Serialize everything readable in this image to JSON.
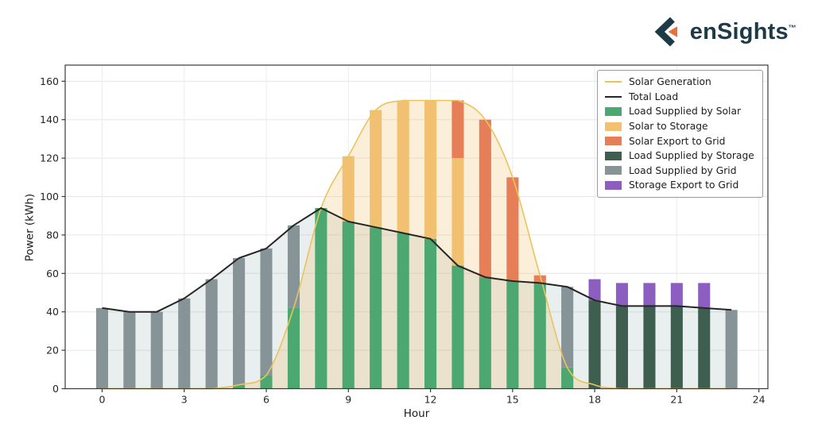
{
  "logo": {
    "brand": "enSights",
    "tm": "™",
    "navy": "#1d3a45",
    "orange": "#e8703a"
  },
  "chart_data": {
    "type": "bar",
    "stacked": true,
    "xlabel": "Hour",
    "ylabel": "Power (kWh)",
    "hours": [
      0,
      1,
      2,
      3,
      4,
      5,
      6,
      7,
      8,
      9,
      10,
      11,
      12,
      13,
      14,
      15,
      16,
      17,
      18,
      19,
      20,
      21,
      22,
      23
    ],
    "xticks": [
      0,
      3,
      6,
      9,
      12,
      15,
      18,
      21,
      24
    ],
    "yticks": [
      0,
      20,
      40,
      60,
      80,
      100,
      120,
      140,
      160
    ],
    "xlim": [
      -1.35,
      24.33
    ],
    "ylim": [
      0,
      168.4
    ],
    "grid": true,
    "legend_position": "upper right",
    "lines": [
      {
        "name": "Solar Generation",
        "color": "#e9c45c",
        "fill": "rgba(240,190,95,0.24)",
        "smooth": true,
        "values": [
          0,
          0,
          0,
          0,
          0,
          2,
          7,
          42,
          94,
          121,
          145,
          150,
          150,
          150,
          140,
          110,
          59,
          11,
          2,
          0,
          0,
          0,
          0,
          0
        ]
      },
      {
        "name": "Total Load",
        "color": "#262626",
        "fill": "rgba(127,152,160,0.17)",
        "smooth": false,
        "values": [
          42,
          40,
          40,
          47,
          57,
          68,
          73,
          85,
          94,
          87,
          84,
          81,
          78,
          64,
          58,
          56,
          55,
          53,
          46,
          43,
          43,
          43,
          42,
          41
        ]
      }
    ],
    "bar_series": [
      {
        "name": "Load Supplied by Solar",
        "color": "#4da770",
        "values": [
          0,
          0,
          0,
          0,
          0,
          2,
          7,
          42,
          94,
          87,
          84,
          81,
          78,
          64,
          58,
          56,
          55,
          11,
          0,
          0,
          0,
          0,
          0,
          0
        ]
      },
      {
        "name": "Load Supplied by Storage",
        "color": "#3e5e50",
        "values": [
          0,
          0,
          0,
          0,
          0,
          0,
          0,
          0,
          0,
          0,
          0,
          0,
          0,
          0,
          0,
          0,
          0,
          0,
          46,
          43,
          43,
          43,
          42,
          0
        ]
      },
      {
        "name": "Load Supplied by Grid",
        "color": "#879497",
        "values": [
          42,
          40,
          40,
          47,
          57,
          66,
          66,
          43,
          0,
          0,
          0,
          0,
          0,
          0,
          0,
          0,
          0,
          42,
          0,
          0,
          0,
          0,
          0,
          41
        ]
      },
      {
        "name": "Solar to Storage",
        "color": "#f1c171",
        "values": [
          0,
          0,
          0,
          0,
          0,
          0,
          0,
          0,
          0,
          34,
          61,
          69,
          72,
          56,
          0,
          0,
          0,
          0,
          0,
          0,
          0,
          0,
          0,
          0
        ]
      },
      {
        "name": "Solar Export to Grid",
        "color": "#e67e58",
        "values": [
          0,
          0,
          0,
          0,
          0,
          0,
          0,
          0,
          0,
          0,
          0,
          0,
          0,
          30,
          82,
          54,
          4,
          0,
          0,
          0,
          0,
          0,
          0,
          0
        ]
      },
      {
        "name": "Storage Export to Grid",
        "color": "#8c5ec0",
        "values": [
          0,
          0,
          0,
          0,
          0,
          0,
          0,
          0,
          0,
          0,
          0,
          0,
          0,
          0,
          0,
          0,
          0,
          0,
          11,
          12,
          12,
          12,
          13,
          0
        ]
      }
    ],
    "legend_order": [
      "Solar Generation",
      "Total Load",
      "Load Supplied by Solar",
      "Solar to Storage",
      "Solar Export to Grid",
      "Load Supplied by Storage",
      "Load Supplied by Grid",
      "Storage Export to Grid"
    ],
    "bar_width_hours": 0.44
  }
}
